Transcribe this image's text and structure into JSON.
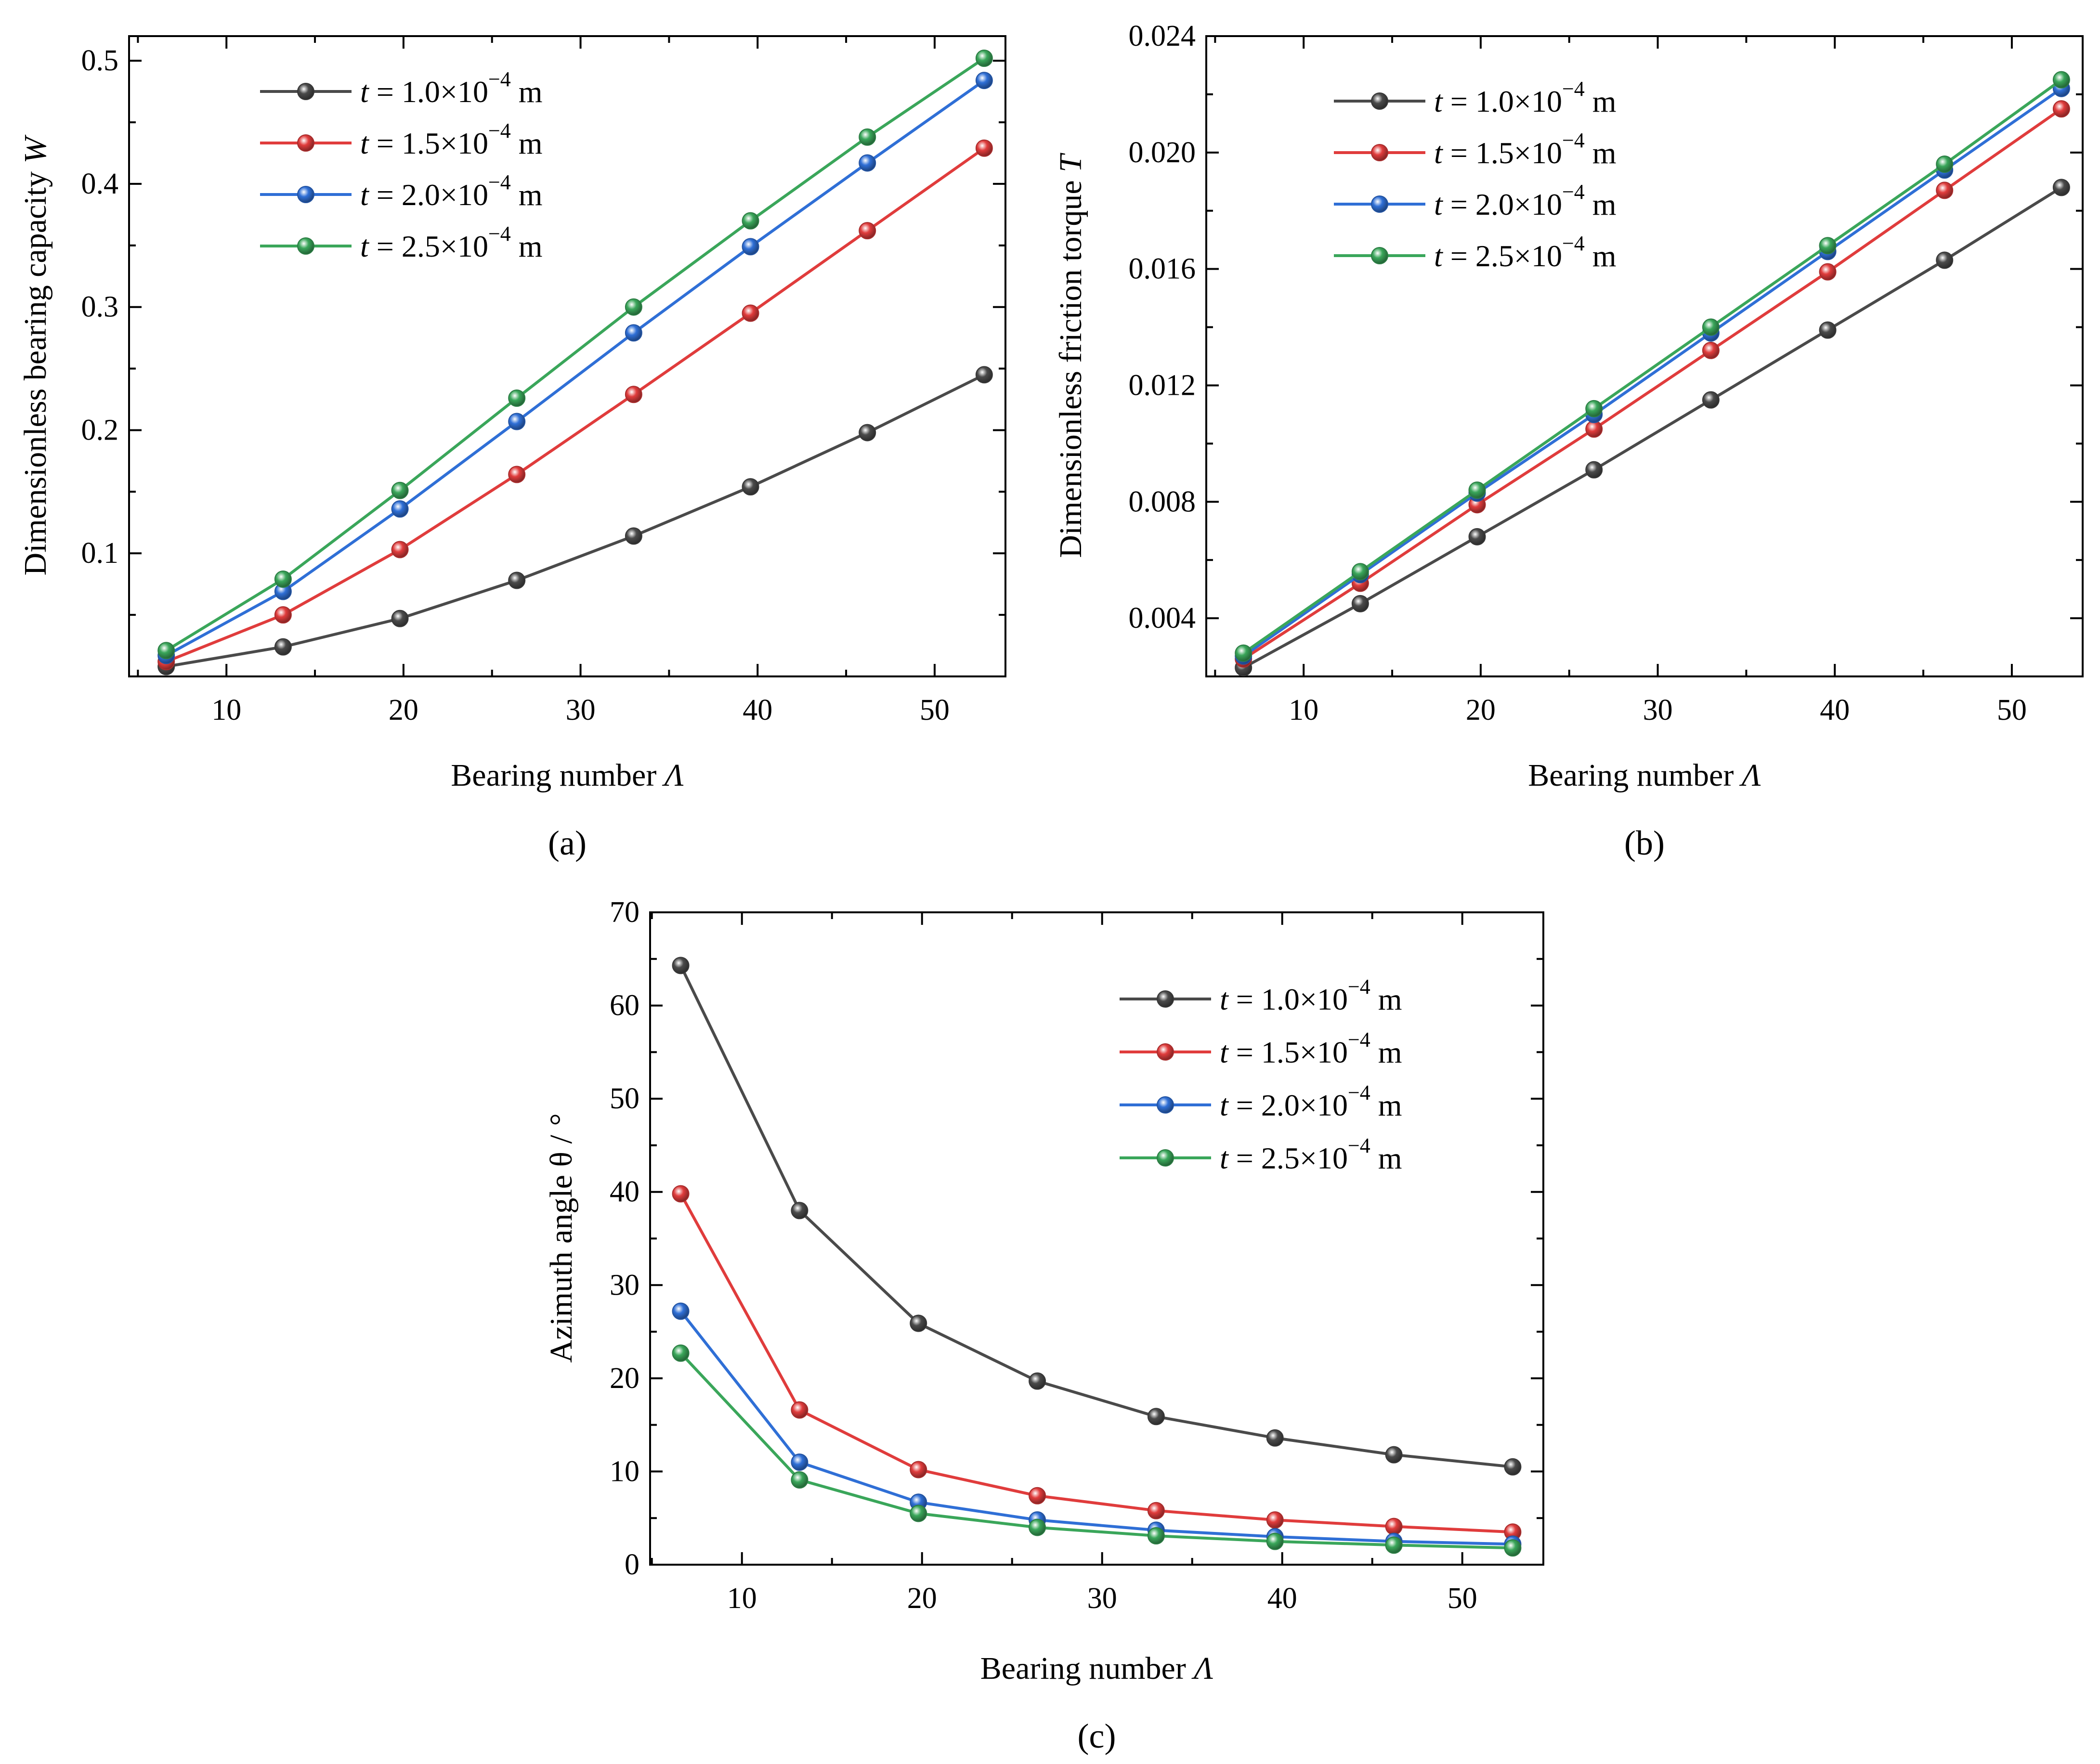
{
  "legend_labels": [
    "t = 1.0×10⁻⁴ m",
    "t = 1.5×10⁻⁴ m",
    "t = 2.0×10⁻⁴ m",
    "t = 2.5×10⁻⁴ m"
  ],
  "series_colors": [
    "#4a4a4a",
    "#e03c3c",
    "#2f6fd6",
    "#3aa65a"
  ],
  "chart_data": [
    {
      "panel_label": "(a)",
      "type": "line",
      "title": "",
      "xlabel": "Bearing number Λ",
      "ylabel": "Dimensionless bearing capacity W̄",
      "xlim": [
        4.5,
        54
      ],
      "ylim": [
        0,
        0.52
      ],
      "xticks": [
        10,
        20,
        30,
        40,
        50
      ],
      "xtick_labels": [
        "10",
        "20",
        "30",
        "40",
        "50"
      ],
      "yticks": [
        0.1,
        0.2,
        0.3,
        0.4,
        0.5
      ],
      "ytick_labels": [
        "0.1",
        "0.2",
        "0.3",
        "0.4",
        "0.5"
      ],
      "legend_position": "top-left",
      "x": [
        6.6,
        13.2,
        19.8,
        26.4,
        33.0,
        39.6,
        46.2,
        52.8
      ],
      "series": [
        {
          "name": "t = 1.0×10⁻⁴ m",
          "values": [
            0.008,
            0.024,
            0.047,
            0.078,
            0.114,
            0.154,
            0.198,
            0.245
          ]
        },
        {
          "name": "t = 1.5×10⁻⁴ m",
          "values": [
            0.012,
            0.05,
            0.103,
            0.164,
            0.229,
            0.295,
            0.362,
            0.429
          ]
        },
        {
          "name": "t = 2.0×10⁻⁴ m",
          "values": [
            0.017,
            0.069,
            0.136,
            0.207,
            0.279,
            0.349,
            0.417,
            0.484
          ]
        },
        {
          "name": "t = 2.5×10⁻⁴ m",
          "values": [
            0.021,
            0.079,
            0.151,
            0.226,
            0.3,
            0.37,
            0.438,
            0.502
          ]
        }
      ]
    },
    {
      "panel_label": "(b)",
      "type": "line",
      "title": "",
      "xlabel": "Bearing number Λ",
      "ylabel": "Dimensionless friction torque T",
      "xlim": [
        4.5,
        54
      ],
      "ylim": [
        0.002,
        0.024
      ],
      "xticks": [
        10,
        20,
        30,
        40,
        50
      ],
      "xtick_labels": [
        "10",
        "20",
        "30",
        "40",
        "50"
      ],
      "yticks": [
        0.004,
        0.008,
        0.012,
        0.016,
        0.02,
        0.024
      ],
      "ytick_labels": [
        "0.004",
        "0.008",
        "0.012",
        "0.016",
        "0.020",
        "0.024"
      ],
      "legend_position": "top-left",
      "x": [
        6.6,
        13.2,
        19.8,
        26.4,
        33.0,
        39.6,
        46.2,
        52.8
      ],
      "series": [
        {
          "name": "t = 1.0×10⁻⁴ m",
          "values": [
            0.0023,
            0.0045,
            0.0068,
            0.0091,
            0.0115,
            0.0139,
            0.0163,
            0.0188
          ]
        },
        {
          "name": "t = 1.5×10⁻⁴ m",
          "values": [
            0.0026,
            0.0052,
            0.0079,
            0.0105,
            0.0132,
            0.0159,
            0.0187,
            0.0215
          ]
        },
        {
          "name": "t = 2.0×10⁻⁴ m",
          "values": [
            0.0027,
            0.0055,
            0.0083,
            0.011,
            0.0138,
            0.0166,
            0.0194,
            0.0222
          ]
        },
        {
          "name": "t = 2.5×10⁻⁴ m",
          "values": [
            0.0028,
            0.0056,
            0.0084,
            0.0112,
            0.014,
            0.0168,
            0.0196,
            0.0225
          ]
        }
      ]
    },
    {
      "panel_label": "(c)",
      "type": "line",
      "title": "",
      "xlabel": "Bearing number Λ",
      "ylabel": "Azimuth angle θ / °",
      "xlim": [
        4.9,
        54.5
      ],
      "ylim": [
        0,
        70
      ],
      "xticks": [
        10,
        20,
        30,
        40,
        50
      ],
      "xtick_labels": [
        "10",
        "20",
        "30",
        "40",
        "50"
      ],
      "yticks": [
        0,
        10,
        20,
        30,
        40,
        50,
        60,
        70
      ],
      "ytick_labels": [
        "0",
        "10",
        "20",
        "30",
        "40",
        "50",
        "60",
        "70"
      ],
      "legend_position": "top-right",
      "x": [
        6.6,
        13.2,
        19.8,
        26.4,
        33.0,
        39.6,
        46.2,
        52.8
      ],
      "series": [
        {
          "name": "t = 1.0×10⁻⁴ m",
          "values": [
            64.3,
            38.0,
            25.9,
            19.7,
            15.9,
            13.6,
            11.8,
            10.5
          ]
        },
        {
          "name": "t = 1.5×10⁻⁴ m",
          "values": [
            39.8,
            16.6,
            10.2,
            7.4,
            5.8,
            4.8,
            4.1,
            3.5
          ]
        },
        {
          "name": "t = 2.0×10⁻⁴ m",
          "values": [
            27.2,
            11.0,
            6.7,
            4.8,
            3.7,
            3.0,
            2.5,
            2.2
          ]
        },
        {
          "name": "t = 2.5×10⁻⁴ m",
          "values": [
            22.7,
            9.1,
            5.5,
            4.0,
            3.1,
            2.5,
            2.1,
            1.8
          ]
        }
      ]
    }
  ]
}
